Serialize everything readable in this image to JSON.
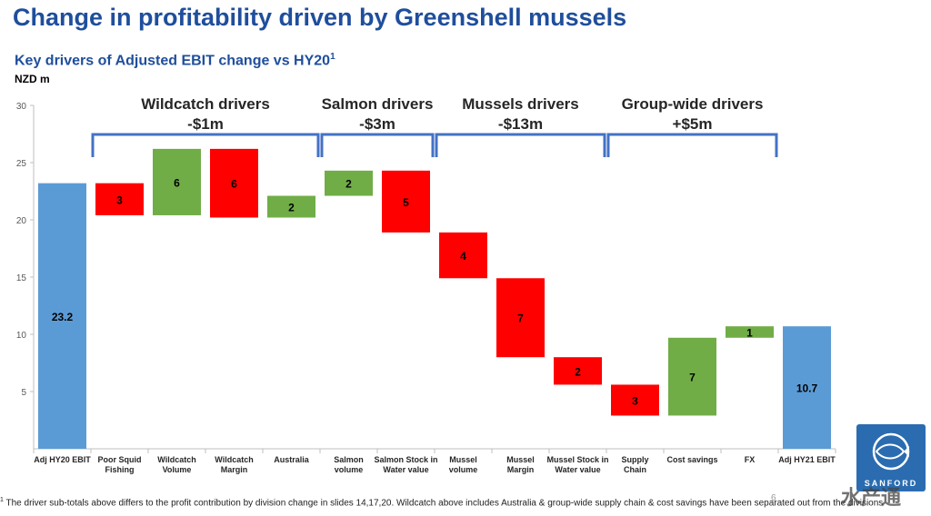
{
  "page": {
    "title": "Change in profitability driven by Greenshell mussels",
    "subtitle": "Key drivers of Adjusted EBIT change vs HY20",
    "subtitle_sup": "1",
    "unit_label": "NZD m",
    "footnote_sup": "1",
    "footnote": " The driver sub-totals above differs to the profit contribution by division change in slides 14,17,20.  Wildcatch above includes Australia & group-wide supply chain & cost savings  have been separated out from the divisions",
    "page_number": "6",
    "logo_text": "SANFORD",
    "watermark": "水产通"
  },
  "colors": {
    "total": "#5b9bd5",
    "increase": "#70ad47",
    "decrease": "#ff0000",
    "bracket": "#4472c4",
    "title": "#1f4e9c"
  },
  "chart_data": {
    "type": "bar",
    "subtype": "waterfall",
    "ylim": [
      0,
      30
    ],
    "yticks": [
      5,
      10,
      15,
      20,
      25,
      30
    ],
    "grid": false,
    "categories": [
      [
        "Adj HY20 EBIT"
      ],
      [
        "Poor Squid",
        "Fishing"
      ],
      [
        "Wildcatch",
        "Volume"
      ],
      [
        "Wildcatch",
        "Margin"
      ],
      [
        "Australia"
      ],
      [
        "Salmon",
        "volume"
      ],
      [
        "Salmon Stock in",
        "Water value"
      ],
      [
        "Mussel",
        "volume"
      ],
      [
        "Mussel",
        "Margin"
      ],
      [
        "Mussel Stock in",
        "Water value"
      ],
      [
        "Supply",
        "Chain"
      ],
      [
        "Cost savings"
      ],
      [
        "FX"
      ],
      [
        "Adj HY21 EBIT"
      ]
    ],
    "bars": [
      {
        "kind": "total",
        "low": 0,
        "high": 23.2,
        "label": "23.2"
      },
      {
        "kind": "decrease",
        "low": 20.4,
        "high": 23.2,
        "label": "3"
      },
      {
        "kind": "increase",
        "low": 20.4,
        "high": 26.2,
        "label": "6"
      },
      {
        "kind": "decrease",
        "low": 20.2,
        "high": 26.2,
        "label": "6"
      },
      {
        "kind": "increase",
        "low": 20.2,
        "high": 22.1,
        "label": "2"
      },
      {
        "kind": "increase",
        "low": 22.1,
        "high": 24.3,
        "label": "2"
      },
      {
        "kind": "decrease",
        "low": 18.9,
        "high": 24.3,
        "label": "5"
      },
      {
        "kind": "decrease",
        "low": 14.9,
        "high": 18.9,
        "label": "4"
      },
      {
        "kind": "decrease",
        "low": 8.0,
        "high": 14.9,
        "label": "7"
      },
      {
        "kind": "decrease",
        "low": 5.6,
        "high": 8.0,
        "label": "2"
      },
      {
        "kind": "decrease",
        "low": 2.9,
        "high": 5.6,
        "label": "3"
      },
      {
        "kind": "increase",
        "low": 2.9,
        "high": 9.7,
        "label": "7"
      },
      {
        "kind": "increase",
        "low": 9.7,
        "high": 10.7,
        "label": "1"
      },
      {
        "kind": "total",
        "low": 0,
        "high": 10.7,
        "label": "10.7"
      }
    ],
    "groups": [
      {
        "name": "Wildcatch drivers",
        "value": "-$1m",
        "from": 1,
        "to": 4
      },
      {
        "name": "Salmon drivers",
        "value": "-$3m",
        "from": 5,
        "to": 6
      },
      {
        "name": "Mussels drivers",
        "value": "-$13m",
        "from": 7,
        "to": 9
      },
      {
        "name": "Group-wide drivers",
        "value": "+$5m",
        "from": 10,
        "to": 12
      }
    ]
  }
}
